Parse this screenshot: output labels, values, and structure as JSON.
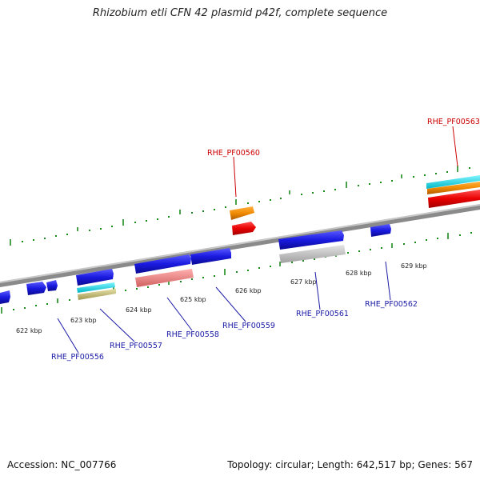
{
  "title": "Rhizobium etli CFN 42 plasmid p42f, complete sequence",
  "footer": {
    "accession": "Accession: NC_007766",
    "topology": "Topology: circular; Length: 642,517 bp; Genes: 567"
  },
  "colors": {
    "background": "#ffffff",
    "backbone": "#8a8a8a",
    "tick": "#1c8a1c",
    "gene_blue": "#1a1ae0",
    "label_blue": "#1a1aa6",
    "label_red": "#cc0000",
    "orange": "#f08a00",
    "red": "#e80000",
    "cyan": "#00d6e6",
    "salmon": "#f08080",
    "olive": "#c8c07a",
    "gray": "#c4c4c4"
  },
  "kbp_labels": [
    "622 kbp",
    "623 kbp",
    "624 kbp",
    "625 kbp",
    "626 kbp",
    "627 kbp",
    "628 kbp",
    "629 kbp"
  ],
  "gene_labels": [
    {
      "id": "RHE_PF00556",
      "color": "blue"
    },
    {
      "id": "RHE_PF00557",
      "color": "blue"
    },
    {
      "id": "RHE_PF00558",
      "color": "blue"
    },
    {
      "id": "RHE_PF00559",
      "color": "blue"
    },
    {
      "id": "RHE_PF00560",
      "color": "red"
    },
    {
      "id": "RHE_PF00561",
      "color": "blue"
    },
    {
      "id": "RHE_PF00562",
      "color": "blue"
    },
    {
      "id": "RHE_PF00563",
      "color": "red"
    }
  ]
}
